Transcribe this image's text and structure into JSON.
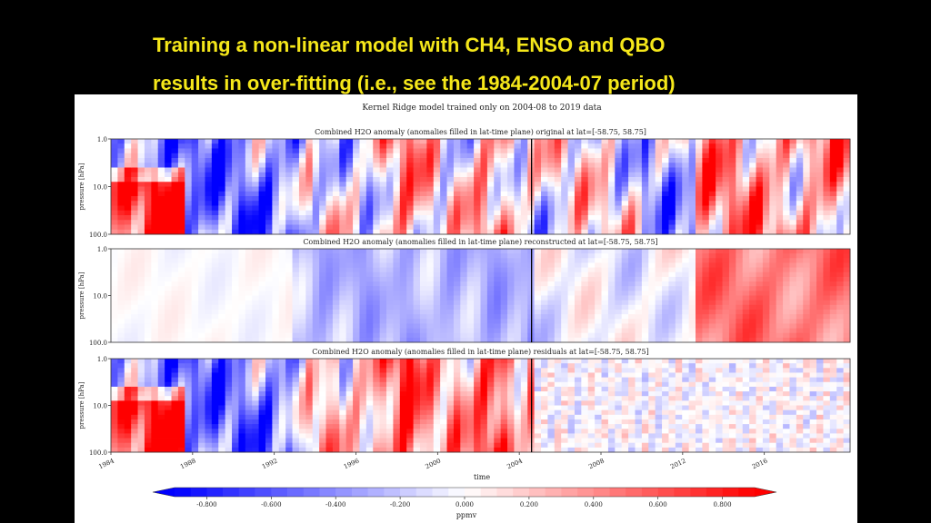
{
  "slide": {
    "title_line1": "Training a non-linear model with CH4, ENSO and QBO",
    "title_line2": "results in over-fitting (i.e., see the 1984-2004-07 period)"
  },
  "chart_data": {
    "type": "heatmap",
    "suptitle": "Kernel Ridge model trained only on 2004-08 to 2019 data",
    "xlabel": "time",
    "ylabel": "pressure [hPa]",
    "x_ticks": [
      "1984",
      "1988",
      "1992",
      "1996",
      "2000",
      "2004",
      "2008",
      "2012",
      "2016"
    ],
    "xlim": [
      1984.0,
      2020.2
    ],
    "y_ticks": [
      "1.0",
      "10.0",
      "100.0"
    ],
    "ylim": [
      100.0,
      1.0
    ],
    "y_scale": "log",
    "vertical_line_x": 2004.6,
    "colormap": "bwr",
    "panels": [
      {
        "title": "Combined H2O anomaly (anomalies filled in lat-time plane) original at lat=[-58.75, 58.75]",
        "kind": "original"
      },
      {
        "title": "Combined H2O anomaly (anomalies filled in lat-time plane) reconstructed at lat=[-58.75, 58.75]",
        "kind": "reconstructed"
      },
      {
        "title": "Combined H2O anomaly (anomalies filled in lat-time plane) residuals at lat=[-58.75, 58.75]",
        "kind": "residuals"
      }
    ],
    "colorbar": {
      "label": "ppmv",
      "ticks": [
        "-0.800",
        "-0.600",
        "-0.400",
        "-0.200",
        "0.000",
        "0.200",
        "0.400",
        "0.600",
        "0.800"
      ],
      "range": [
        -0.9,
        0.9
      ],
      "extend": "both"
    },
    "colors": {
      "negative": "#0000ff",
      "zero": "#ffffff",
      "positive": "#ff0000"
    }
  }
}
